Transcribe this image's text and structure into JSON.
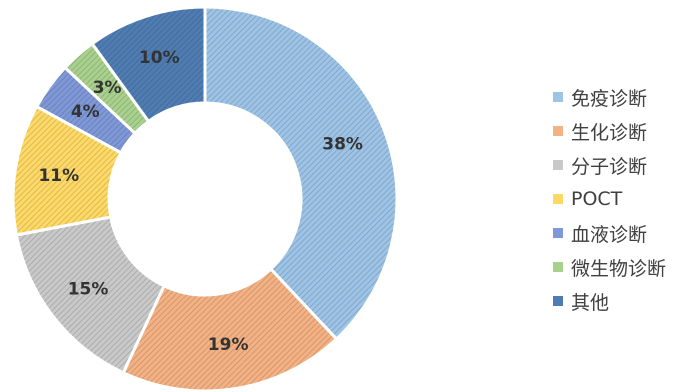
{
  "chart_data": {
    "type": "pie",
    "title": "",
    "categories": [
      "免疫诊断",
      "生化诊断",
      "分子诊断",
      "POCT",
      "血液诊断",
      "微生物诊断",
      "其他"
    ],
    "values": [
      38,
      19,
      15,
      11,
      4,
      3,
      10
    ],
    "value_labels": [
      "38%",
      "19%",
      "15%",
      "11%",
      "4%",
      "3%",
      "10%"
    ],
    "colors": [
      "#9dc3e6",
      "#f4b183",
      "#c9c9c9",
      "#ffd966",
      "#7f98d8",
      "#a9d18e",
      "#4f7db3"
    ],
    "hole": "donut",
    "legend_position": "right"
  }
}
